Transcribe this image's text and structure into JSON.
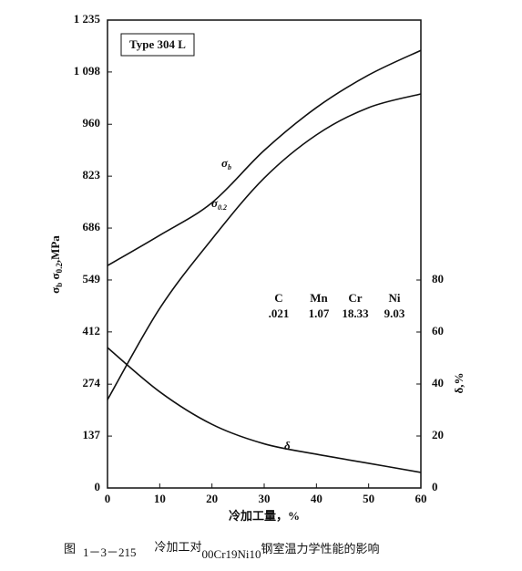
{
  "chart_data": {
    "type": "line",
    "title": "Type 304 L",
    "x_label": "冷加工量，%",
    "y_label": [
      "σ",
      "b",
      " σ",
      "0.2",
      ",MPa"
    ],
    "y2_label": "δ,%",
    "x": [
      0,
      10,
      20,
      30,
      40,
      50,
      60
    ],
    "xlim": [
      0,
      60
    ],
    "xticks": [
      0,
      10,
      20,
      30,
      40,
      50,
      60
    ],
    "ylim": [
      0,
      1235
    ],
    "yticks": [
      0,
      137,
      274,
      412,
      549,
      686,
      823,
      960,
      {
        "value": 1098,
        "label": "1 098"
      },
      {
        "value": 1235,
        "label": "1 235"
      }
    ],
    "y2lim": [
      0,
      180
    ],
    "y2ticks": [
      0,
      20,
      40,
      60,
      80
    ],
    "series": [
      {
        "name": "σ",
        "name_sub": "b",
        "color": "#111111",
        "values": [
          587,
          667,
          753,
          891,
          1004,
          1090,
          1155
        ]
      },
      {
        "name": "σ",
        "name_sub": "0.2",
        "color": "#111111",
        "values": [
          233,
          474,
          657,
          818,
          932,
          1004,
          1040
        ]
      },
      {
        "name": "δ",
        "color": "#111111",
        "axis": "y2",
        "values": [
          54,
          37,
          24.5,
          17,
          13,
          9.5,
          6
        ]
      }
    ],
    "composition": {
      "headers": [
        "C",
        "Mn",
        "Cr",
        "Ni"
      ],
      "values": [
        ".021",
        "1.07",
        "18.33",
        "9.03"
      ]
    },
    "caption": [
      "图",
      "1－3－215",
      "冷加工对",
      "00Cr19Ni10",
      "钢室温力学性能的影响"
    ]
  }
}
